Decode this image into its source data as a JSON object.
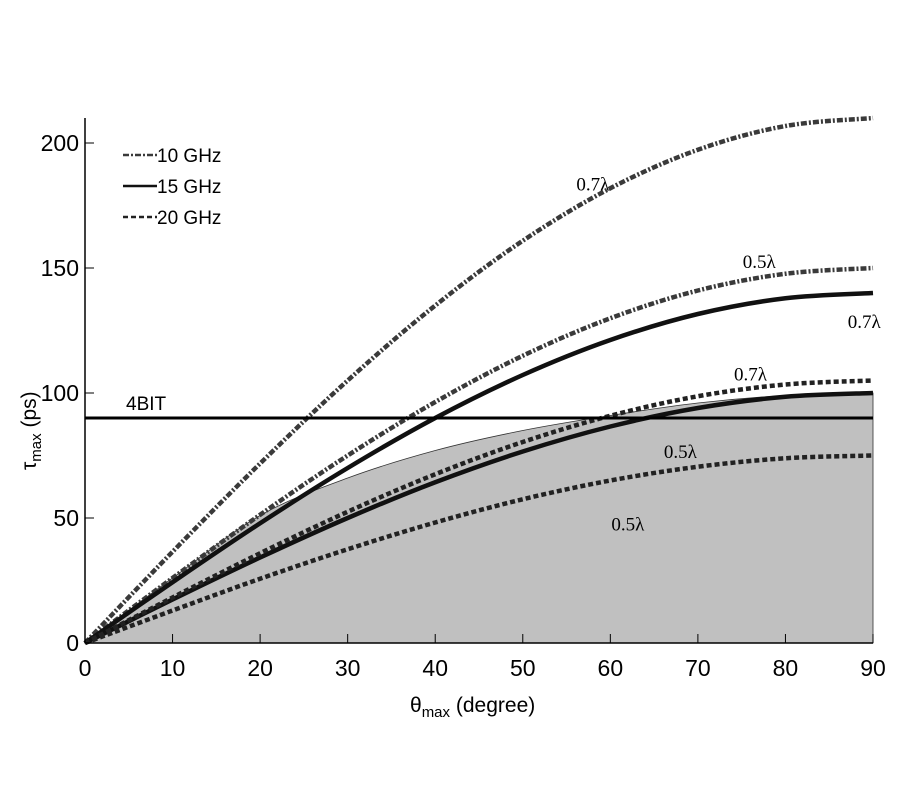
{
  "chart_data": {
    "type": "line",
    "title": "",
    "xlabel": "θ",
    "xlabel_sub": "max",
    "xlabel_rest": " (degree)",
    "ylabel": "τ",
    "ylabel_sub": "max",
    "ylabel_rest": " (ps)",
    "xlim": [
      0,
      90
    ],
    "ylim": [
      0,
      210
    ],
    "xticks": [
      0,
      10,
      20,
      30,
      40,
      50,
      60,
      70,
      80,
      90
    ],
    "yticks": [
      0,
      50,
      100,
      150,
      200
    ],
    "grid": false,
    "legend_placement": "top-left",
    "legend": [
      {
        "label": "10 GHz",
        "style": "dashdot"
      },
      {
        "label": "15 GHz",
        "style": "solid"
      },
      {
        "label": "20 GHz",
        "style": "dashed"
      }
    ],
    "x": [
      0,
      10,
      20,
      30,
      40,
      50,
      60,
      70,
      80,
      90
    ],
    "series": [
      {
        "freq": "10 GHz",
        "spacing": "0.7λ",
        "style": "dashdot",
        "values": [
          0,
          36.5,
          71.8,
          105,
          135,
          160.9,
          181.9,
          197.3,
          206.8,
          210
        ]
      },
      {
        "freq": "10 GHz",
        "spacing": "0.5λ",
        "style": "dashdot",
        "values": [
          0,
          26,
          51.3,
          75,
          96.4,
          114.9,
          129.9,
          141,
          147.7,
          150
        ]
      },
      {
        "freq": "15 GHz",
        "spacing": "0.7λ",
        "style": "solid",
        "values": [
          0,
          24.3,
          47.9,
          70,
          90,
          107.2,
          121.2,
          131.6,
          137.9,
          140
        ]
      },
      {
        "freq": "15 GHz",
        "spacing": "0.5λ",
        "style": "solid",
        "values": [
          0,
          17.4,
          34.2,
          50,
          64.3,
          76.6,
          86.6,
          94,
          98.5,
          100
        ]
      },
      {
        "freq": "20 GHz",
        "spacing": "0.7λ",
        "style": "dashed",
        "values": [
          0,
          18.2,
          35.9,
          52.5,
          67.5,
          80.4,
          90.9,
          98.7,
          103.4,
          105
        ]
      },
      {
        "freq": "20 GHz",
        "spacing": "0.5λ",
        "style": "dashed",
        "values": [
          0,
          13,
          25.7,
          37.5,
          48.2,
          57.5,
          65,
          70.5,
          73.9,
          75
        ]
      }
    ],
    "shaded_region": {
      "color": "#c0c0c0",
      "upper": [
        0,
        26,
        51,
        66,
        77,
        85,
        91,
        96,
        99,
        100
      ]
    },
    "reference_line": {
      "label": "4BIT",
      "y": 90
    },
    "annotations": [
      {
        "text": "0.7λ",
        "x": 58,
        "y": 181
      },
      {
        "text": "0.5λ",
        "x": 77,
        "y": 150
      },
      {
        "text": "0.7λ",
        "x": 89,
        "y": 126
      },
      {
        "text": "0.7λ",
        "x": 76,
        "y": 105
      },
      {
        "text": "0.5λ",
        "x": 68,
        "y": 74
      },
      {
        "text": "0.5λ",
        "x": 62,
        "y": 45
      }
    ]
  }
}
